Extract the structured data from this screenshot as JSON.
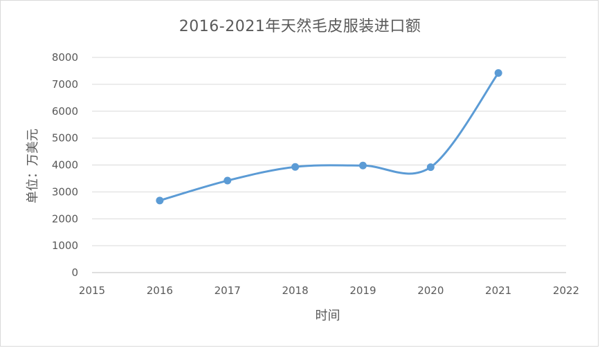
{
  "chart_data": {
    "type": "line",
    "title": "2016-2021年天然毛皮服装进口额",
    "xlabel": "时间",
    "ylabel": "单位：万美元",
    "xlim": [
      2015,
      2022
    ],
    "ylim": [
      0,
      8000
    ],
    "x_ticks": [
      2015,
      2016,
      2017,
      2018,
      2019,
      2020,
      2021,
      2022
    ],
    "y_ticks": [
      0,
      1000,
      2000,
      3000,
      4000,
      5000,
      6000,
      7000,
      8000
    ],
    "grid": true,
    "smooth": true,
    "series": [
      {
        "x": [
          2016,
          2017,
          2018,
          2019,
          2020,
          2021
        ],
        "values": [
          2680,
          3420,
          3930,
          3980,
          3920,
          7420
        ],
        "color": "#5b9bd5"
      }
    ]
  }
}
